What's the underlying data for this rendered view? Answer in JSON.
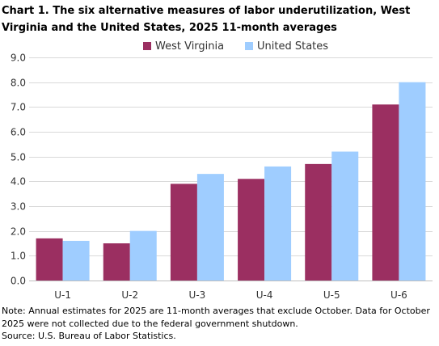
{
  "title": "Chart 1. The six alternative measures of labor underutilization, West Virginia and the United States, 2025 11-month averages",
  "colors": {
    "west_virginia": "#9b2f61",
    "united_states": "#9fcdff",
    "grid": "#d9d9d9",
    "axis": "#bfbfbf",
    "text": "#333333"
  },
  "chart_data": {
    "type": "bar",
    "title": "Chart 1. The six alternative measures of labor underutilization, West Virginia and the United States, 2025 11-month averages",
    "xlabel": "",
    "ylabel": "",
    "categories": [
      "U-1",
      "U-2",
      "U-3",
      "U-4",
      "U-5",
      "U-6"
    ],
    "series": [
      {
        "name": "West Virginia",
        "values": [
          1.7,
          1.5,
          3.9,
          4.1,
          4.7,
          7.1
        ]
      },
      {
        "name": "United States",
        "values": [
          1.6,
          2.0,
          4.3,
          4.6,
          5.2,
          8.0
        ]
      }
    ],
    "ylim": [
      0,
      9
    ],
    "yticks": [
      "0.0",
      "1.0",
      "2.0",
      "3.0",
      "4.0",
      "5.0",
      "6.0",
      "7.0",
      "8.0",
      "9.0"
    ],
    "grid": true,
    "legend": "top-center"
  },
  "notes": {
    "line1": "Note: Annual estimates for 2025 are 11-month averages that exclude October. Data for October",
    "line2": "2025 were not collected due to the federal government shutdown.",
    "source": "Source: U.S. Bureau of Labor Statistics."
  }
}
